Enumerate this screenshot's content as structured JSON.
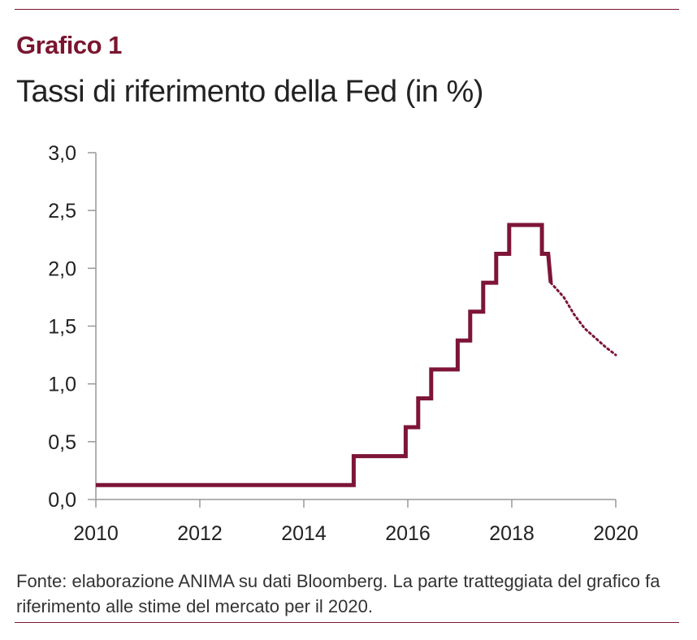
{
  "header": {
    "kicker": "Grafico 1",
    "title": "Tassi di riferimento della Fed (in %)"
  },
  "footer": {
    "source": "Fonte: elaborazione ANIMA su dati Bloomberg. La parte tratteggiata del grafico fa riferimento alle stime del mercato per il 2020."
  },
  "colors": {
    "accent": "#7a1530",
    "series": "#7d1538",
    "axis": "#999999"
  },
  "chart_data": {
    "type": "line",
    "title": "Tassi di riferimento della Fed (in %)",
    "xlabel": "",
    "ylabel": "",
    "xlim": [
      2010,
      2020
    ],
    "ylim": [
      0,
      3
    ],
    "grid": false,
    "x_ticks": [
      {
        "value": 2010,
        "label": "2010"
      },
      {
        "value": 2012,
        "label": "2012"
      },
      {
        "value": 2014,
        "label": "2014"
      },
      {
        "value": 2016,
        "label": "2016"
      },
      {
        "value": 2018,
        "label": "2018"
      },
      {
        "value": 2020,
        "label": "2020"
      }
    ],
    "y_ticks": [
      {
        "value": 0.0,
        "label": "0,0"
      },
      {
        "value": 0.5,
        "label": "0,5"
      },
      {
        "value": 1.0,
        "label": "1,0"
      },
      {
        "value": 1.5,
        "label": "1,5"
      },
      {
        "value": 2.0,
        "label": "2,0"
      },
      {
        "value": 2.5,
        "label": "2,5"
      },
      {
        "value": 3.0,
        "label": "3,0"
      }
    ],
    "series": [
      {
        "style": "solid-step",
        "points": [
          [
            2010.0,
            0.125
          ],
          [
            2014.96,
            0.125
          ],
          [
            2014.96,
            0.375
          ],
          [
            2015.96,
            0.375
          ],
          [
            2015.96,
            0.625
          ],
          [
            2016.2,
            0.625
          ],
          [
            2016.2,
            0.875
          ],
          [
            2016.45,
            0.875
          ],
          [
            2016.45,
            1.125
          ],
          [
            2016.96,
            1.125
          ],
          [
            2016.96,
            1.375
          ],
          [
            2017.2,
            1.375
          ],
          [
            2017.2,
            1.625
          ],
          [
            2017.45,
            1.625
          ],
          [
            2017.45,
            1.875
          ],
          [
            2017.7,
            1.875
          ],
          [
            2017.7,
            2.125
          ],
          [
            2017.95,
            2.125
          ],
          [
            2017.95,
            2.375
          ],
          [
            2018.58,
            2.375
          ],
          [
            2018.58,
            2.125
          ],
          [
            2018.7,
            2.125
          ],
          [
            2018.75,
            1.875
          ]
        ]
      },
      {
        "style": "dotted-estimate",
        "points": [
          [
            2018.75,
            1.875
          ],
          [
            2019.0,
            1.75
          ],
          [
            2019.2,
            1.6
          ],
          [
            2019.4,
            1.48
          ],
          [
            2019.6,
            1.4
          ],
          [
            2019.8,
            1.32
          ],
          [
            2020.0,
            1.25
          ]
        ]
      }
    ]
  }
}
